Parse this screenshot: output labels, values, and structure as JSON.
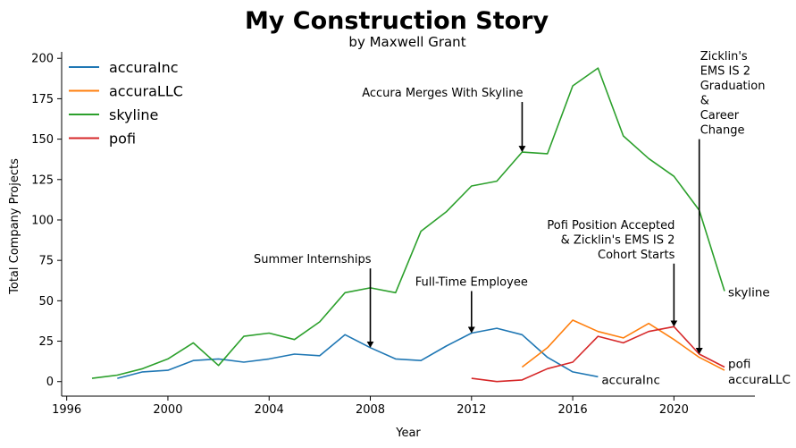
{
  "chart_data": {
    "type": "line",
    "title": "My Construction Story",
    "subtitle": "by Maxwell Grant",
    "xlabel": "Year",
    "ylabel": "Total Company Projects",
    "xlim": [
      1995.8,
      2023.2
    ],
    "ylim": [
      -9,
      204
    ],
    "xticks": [
      1996,
      2000,
      2004,
      2008,
      2012,
      2016,
      2020
    ],
    "yticks": [
      0,
      25,
      50,
      75,
      100,
      125,
      150,
      175,
      200
    ],
    "grid": false,
    "legend_position": "top-left",
    "series": [
      {
        "name": "accuraInc",
        "color": "#1f77b4",
        "x": [
          1998,
          1999,
          2000,
          2001,
          2002,
          2003,
          2004,
          2005,
          2006,
          2007,
          2008,
          2009,
          2010,
          2011,
          2012,
          2013,
          2014,
          2015,
          2016,
          2017
        ],
        "y": [
          2,
          6,
          7,
          13,
          14,
          12,
          14,
          17,
          16,
          29,
          21,
          14,
          13,
          22,
          30,
          33,
          29,
          15,
          6,
          3
        ]
      },
      {
        "name": "accuraLLC",
        "color": "#ff7f0e",
        "x": [
          2014,
          2015,
          2016,
          2017,
          2018,
          2019,
          2020,
          2021,
          2022
        ],
        "y": [
          9,
          21,
          38,
          31,
          27,
          36,
          26,
          15,
          7
        ]
      },
      {
        "name": "skyline",
        "color": "#2ca02c",
        "x": [
          1997,
          1998,
          1999,
          2000,
          2001,
          2002,
          2003,
          2004,
          2005,
          2006,
          2007,
          2008,
          2009,
          2010,
          2011,
          2012,
          2013,
          2014,
          2015,
          2016,
          2017,
          2018,
          2019,
          2020,
          2021,
          2022
        ],
        "y": [
          2,
          4,
          8,
          14,
          24,
          10,
          28,
          30,
          26,
          37,
          55,
          58,
          55,
          93,
          105,
          121,
          124,
          142,
          141,
          183,
          194,
          152,
          138,
          127,
          106,
          56
        ]
      },
      {
        "name": "pofi",
        "color": "#d62728",
        "x": [
          2012,
          2013,
          2014,
          2015,
          2016,
          2017,
          2018,
          2019,
          2020,
          2021,
          2022
        ],
        "y": [
          2,
          0,
          1,
          8,
          12,
          28,
          24,
          31,
          34,
          17,
          9
        ]
      }
    ],
    "end_labels": [
      {
        "series": "skyline",
        "text": "skyline",
        "x": 2022,
        "y": 56
      },
      {
        "series": "accuraInc",
        "text": "accuraInc",
        "x": 2017,
        "y": 3
      },
      {
        "series": "pofi",
        "text": "pofi",
        "x": 2022,
        "y": 9
      },
      {
        "series": "accuraLLC",
        "text": "accuraLLC",
        "x": 2022,
        "y": 7
      }
    ],
    "annotations": [
      {
        "lines": [
          "Summer Internships"
        ],
        "x": 2008,
        "y": 21,
        "text_y": 70,
        "align": "right"
      },
      {
        "lines": [
          "Full-Time Employee"
        ],
        "x": 2012,
        "y": 30,
        "text_y": 56,
        "align": "center"
      },
      {
        "lines": [
          "Accura Merges With Skyline"
        ],
        "x": 2014,
        "y": 142,
        "text_y": 173,
        "align": "right"
      },
      {
        "lines": [
          "Pofi Position Accepted",
          "& Zicklin's EMS IS 2",
          "Cohort Starts"
        ],
        "x": 2020,
        "y": 34,
        "text_y": 73,
        "align": "right"
      },
      {
        "lines": [
          "Zicklin's",
          "EMS IS 2",
          "Graduation",
          "&",
          "Career",
          "Change"
        ],
        "x": 2021,
        "y": 17,
        "text_y": 150,
        "align": "left"
      }
    ]
  }
}
